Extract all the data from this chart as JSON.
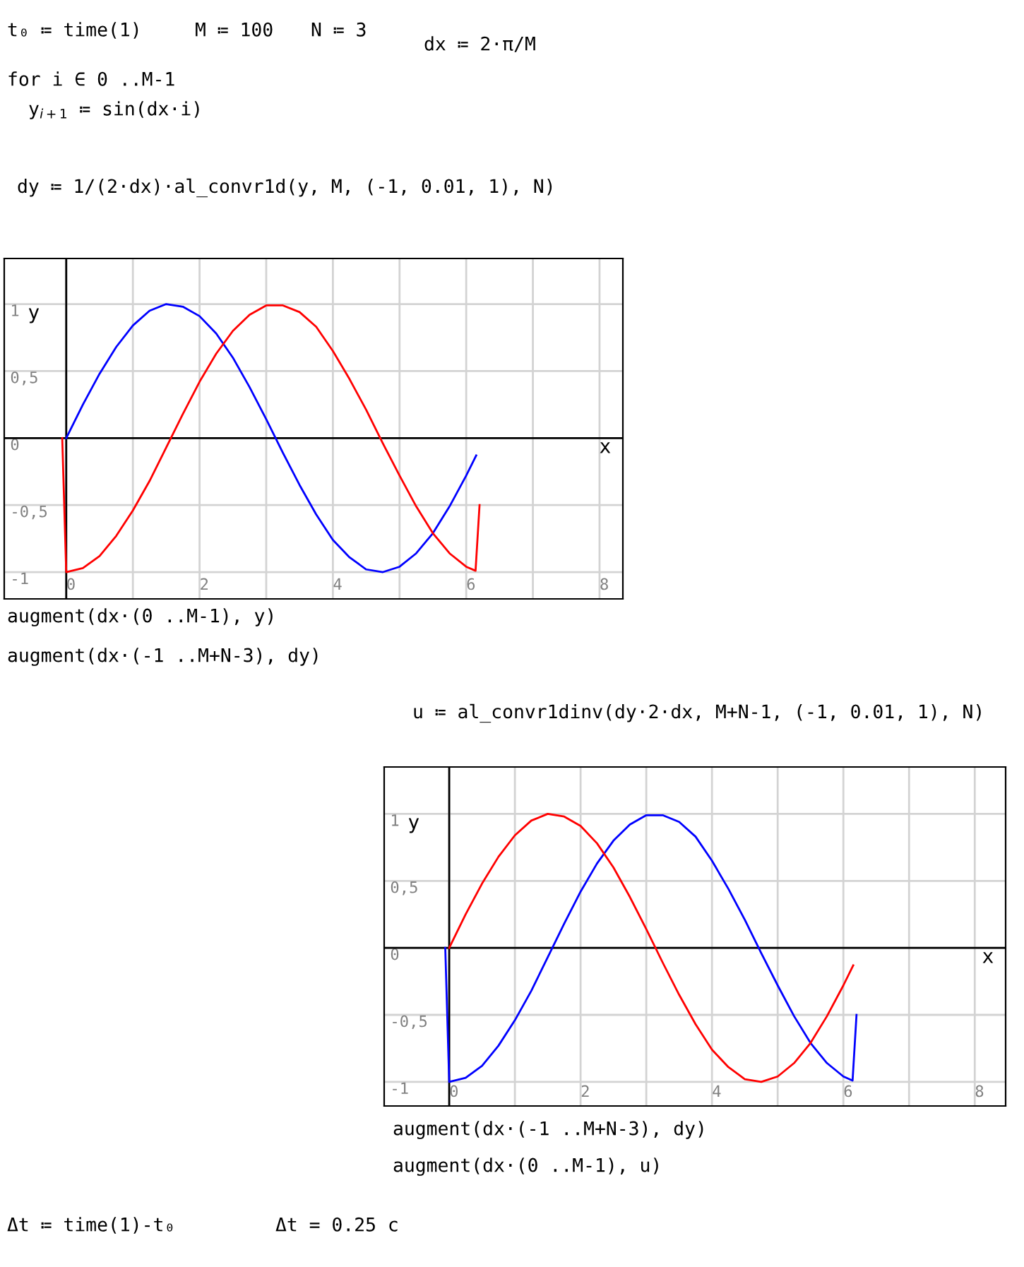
{
  "chart_data": [
    {
      "type": "line",
      "xlabel": "x",
      "ylabel": "y",
      "xlim": [
        -0.93,
        8.35
      ],
      "ylim": [
        -1.2,
        1.34
      ],
      "xticks": [
        0,
        {
          "value": 1,
          "label": null
        },
        2,
        {
          "value": 3,
          "label": null
        },
        4,
        {
          "value": 5,
          "label": null
        },
        6,
        {
          "value": 7,
          "label": null
        },
        8
      ],
      "yticks": [
        {
          "value": -1,
          "label": "-1"
        },
        {
          "value": -0.5,
          "label": "-0,5"
        },
        0,
        {
          "value": 0.5,
          "label": "0,5"
        },
        1
      ],
      "grid": true,
      "series": [
        {
          "color": "#0000ff",
          "x": [
            0,
            0.25,
            0.5,
            0.75,
            1.0,
            1.25,
            1.5,
            1.75,
            2.0,
            2.25,
            2.5,
            2.75,
            3.0,
            3.25,
            3.5,
            3.75,
            4.0,
            4.25,
            4.5,
            4.75,
            5.0,
            5.25,
            5.5,
            5.75,
            6.0,
            6.15
          ],
          "values": [
            0,
            0.25,
            0.48,
            0.68,
            0.84,
            0.95,
            1.0,
            0.98,
            0.91,
            0.78,
            0.6,
            0.38,
            0.14,
            -0.11,
            -0.35,
            -0.57,
            -0.76,
            -0.89,
            -0.98,
            -1.0,
            -0.96,
            -0.86,
            -0.71,
            -0.51,
            -0.28,
            -0.13
          ]
        },
        {
          "color": "#ff0000",
          "x": [
            -0.06,
            0,
            0.25,
            0.5,
            0.75,
            1.0,
            1.25,
            1.5,
            1.75,
            2.0,
            2.25,
            2.5,
            2.75,
            3.0,
            3.25,
            3.5,
            3.75,
            4.0,
            4.25,
            4.5,
            4.75,
            5.0,
            5.25,
            5.5,
            5.75,
            6.0,
            6.14,
            6.2
          ],
          "values": [
            0,
            -1,
            -0.97,
            -0.88,
            -0.73,
            -0.54,
            -0.32,
            -0.07,
            0.18,
            0.42,
            0.63,
            0.8,
            0.92,
            0.99,
            0.99,
            0.94,
            0.83,
            0.65,
            0.44,
            0.21,
            -0.04,
            -0.28,
            -0.51,
            -0.71,
            -0.86,
            -0.96,
            -0.99,
            -0.5
          ]
        }
      ],
      "annotations": [
        "t₀ ≔ time(1)",
        "M ≔ 100",
        "N ≔ 3",
        "dx ≔ 2·π/M",
        "for i ∈ 0 ..M-1",
        "y$_{i+1}$ ≔ sin(dx·i)",
        "dy ≔ 1/(2·dx)·al_convr1d(y, M, (-1, 0.01, 1), N)",
        "augment(dx·(0 ..M-1), y)",
        "augment(dx·(-1 ..M+N-3), dy)"
      ]
    },
    {
      "type": "line",
      "xlabel": "x",
      "ylabel": "y",
      "xlim": [
        -0.99,
        8.47
      ],
      "ylim": [
        -1.18,
        1.35
      ],
      "xticks": [
        0,
        {
          "value": 1,
          "label": null
        },
        2,
        {
          "value": 3,
          "label": null
        },
        4,
        {
          "value": 5,
          "label": null
        },
        6,
        {
          "value": 7,
          "label": null
        },
        8
      ],
      "yticks": [
        {
          "value": -1,
          "label": "-1"
        },
        {
          "value": -0.5,
          "label": "-0,5"
        },
        0,
        {
          "value": 0.5,
          "label": "0,5"
        },
        1
      ],
      "grid": true,
      "series": [
        {
          "color": "#0000ff",
          "x": [
            -0.06,
            0,
            0.25,
            0.5,
            0.75,
            1.0,
            1.25,
            1.5,
            1.75,
            2.0,
            2.25,
            2.5,
            2.75,
            3.0,
            3.25,
            3.5,
            3.75,
            4.0,
            4.25,
            4.5,
            4.75,
            5.0,
            5.25,
            5.5,
            5.75,
            6.0,
            6.14,
            6.2
          ],
          "values": [
            0,
            -1,
            -0.97,
            -0.88,
            -0.73,
            -0.54,
            -0.32,
            -0.07,
            0.18,
            0.42,
            0.63,
            0.8,
            0.92,
            0.99,
            0.99,
            0.94,
            0.83,
            0.65,
            0.44,
            0.21,
            -0.04,
            -0.28,
            -0.51,
            -0.71,
            -0.86,
            -0.96,
            -0.99,
            -0.5
          ]
        },
        {
          "color": "#ff0000",
          "x": [
            0,
            0.25,
            0.5,
            0.75,
            1.0,
            1.25,
            1.5,
            1.75,
            2.0,
            2.25,
            2.5,
            2.75,
            3.0,
            3.25,
            3.5,
            3.75,
            4.0,
            4.25,
            4.5,
            4.75,
            5.0,
            5.25,
            5.5,
            5.75,
            6.0,
            6.15
          ],
          "values": [
            0,
            0.25,
            0.48,
            0.68,
            0.84,
            0.95,
            1.0,
            0.98,
            0.91,
            0.78,
            0.6,
            0.38,
            0.14,
            -0.11,
            -0.35,
            -0.57,
            -0.76,
            -0.89,
            -0.98,
            -1.0,
            -0.96,
            -0.86,
            -0.71,
            -0.51,
            -0.28,
            -0.13
          ]
        }
      ],
      "annotations": [
        "u ≔ al_convr1dinv(dy·2·dx, M+N-1, (-1, 0.01, 1), N)",
        "augment(dx·(-1 ..M+N-3), dy)",
        "augment(dx·(0 ..M-1), u)",
        "Δt ≔ time(1)-t₀",
        "Δt = 0.25 c"
      ]
    }
  ]
}
